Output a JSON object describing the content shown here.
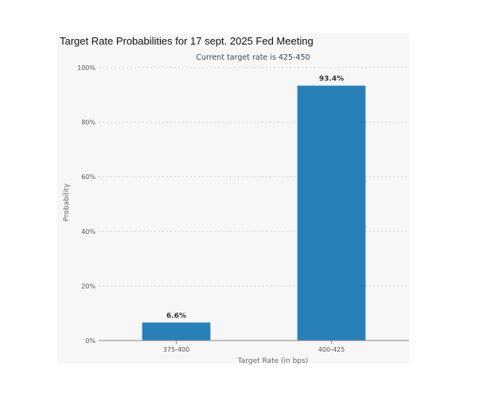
{
  "chart_data": {
    "type": "bar",
    "title": "Target Rate Probabilities for 17 sept. 2025 Fed Meeting",
    "subtitle": "Current target rate is 425-450",
    "xlabel": "Target Rate (in bps)",
    "ylabel": "Probability",
    "categories": [
      "375-400",
      "400-425"
    ],
    "values": [
      6.6,
      93.4
    ],
    "data_labels": [
      "6.6%",
      "93.4%"
    ],
    "ylim": [
      0,
      100
    ],
    "yticks": [
      0,
      20,
      40,
      60,
      80,
      100
    ],
    "ytick_labels": [
      "0%",
      "20%",
      "40%",
      "60%",
      "80%",
      "100%"
    ],
    "grid": true,
    "legend": "none",
    "colors": {
      "bar": "#2980b9",
      "grid": "#cccccc",
      "axis": "#888888"
    }
  }
}
